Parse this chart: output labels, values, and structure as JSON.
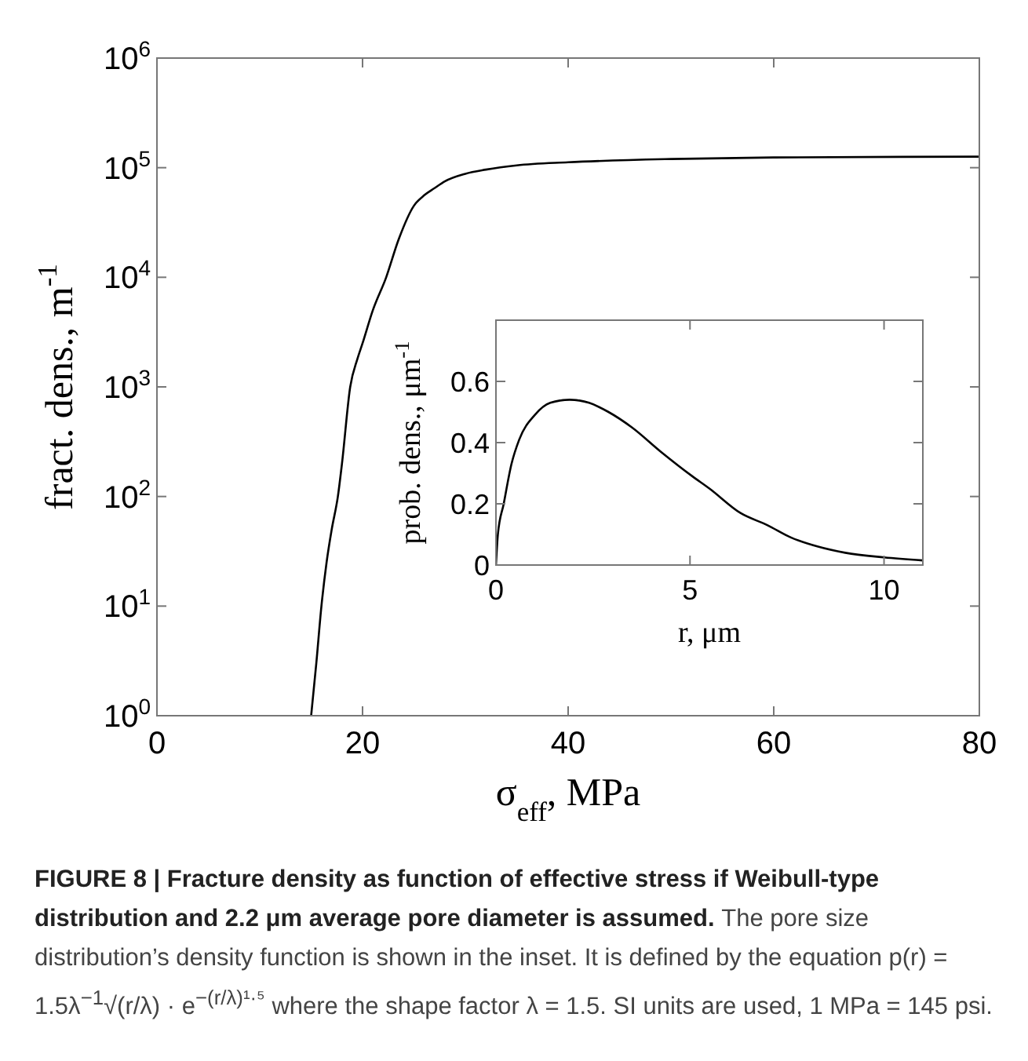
{
  "chart_data": [
    {
      "type": "line",
      "xlabel": "σ$_{eff}$, MPa",
      "ylabel": "fract. dens., m$^{-1}$",
      "log": "y",
      "xlim": [
        0,
        80
      ],
      "ylim": [
        1,
        1000000
      ],
      "xticks": [
        0,
        20,
        40,
        60,
        80
      ],
      "yticks": [
        {
          "value": 1,
          "label": "10$^{0}$"
        },
        {
          "value": 10,
          "label": "10$^{1}$"
        },
        {
          "value": 100,
          "label": "10$^{2}$"
        },
        {
          "value": 1000,
          "label": "10$^{3}$"
        },
        {
          "value": 10000,
          "label": "10$^{4}$"
        },
        {
          "value": 100000,
          "label": "10$^{5}$"
        },
        {
          "value": 1000000,
          "label": "10$^{6}$"
        }
      ],
      "series": [
        {
          "color": "#000000",
          "x": [
            15,
            15.5,
            16,
            16.5,
            17,
            17.6,
            18,
            18.8,
            19.5,
            20,
            21,
            22.3,
            23.5,
            25,
            26,
            27,
            28,
            30,
            32,
            35,
            40,
            50,
            60,
            80
          ],
          "values": [
            1,
            3,
            10,
            25,
            50,
            100,
            200,
            1000,
            1800,
            2500,
            5000,
            10000,
            22000,
            45000,
            56000,
            65000,
            75000,
            88000,
            96000,
            105000,
            112000,
            120000,
            124000,
            126000
          ]
        }
      ],
      "grid": false,
      "marker": "none",
      "line_style": "solid",
      "annotations": [
        "FIGURE 8 | Fracture density as function of effective stress if Weibull-type distribution and 2.2 μm average pore diameter is assumed.",
        "The pore size distribution’s density function is shown in the inset. It is defined by the equation p(r) = 1.5λ$^{−1}$√(r/λ) · e$^{−(r/λ)¹·⁵}$ where the shape factor λ = 1.5. SI units are used, 1 MPa = 145 psi."
      ]
    },
    {
      "type": "line",
      "xlabel": "r, μm",
      "ylabel": "prob. dens., μm$^{-1}$",
      "xlim": [
        0,
        11
      ],
      "ylim": [
        0,
        0.8
      ],
      "xticks": [
        0,
        5,
        10
      ],
      "yticks": [
        0,
        0.2,
        0.4,
        0.6,
        {
          "value": 0.8,
          "label": null
        }
      ],
      "series": [
        {
          "color": "#000000",
          "x": [
            0,
            0.05,
            0.2,
            0.4,
            0.6,
            1.0,
            1.4,
            1.9,
            2.4,
            2.9,
            3.5,
            4.25,
            5.06,
            5.5,
            6.3,
            7,
            7.6,
            8.3,
            9.0,
            10,
            11
          ],
          "values": [
            0,
            0.1,
            0.2,
            0.33,
            0.41,
            0.49,
            0.53,
            0.54,
            0.53,
            0.5,
            0.45,
            0.37,
            0.29,
            0.25,
            0.17,
            0.13,
            0.09,
            0.06,
            0.04,
            0.025,
            0.015
          ]
        }
      ],
      "grid": false,
      "marker": "none",
      "line_style": "solid"
    }
  ]
}
